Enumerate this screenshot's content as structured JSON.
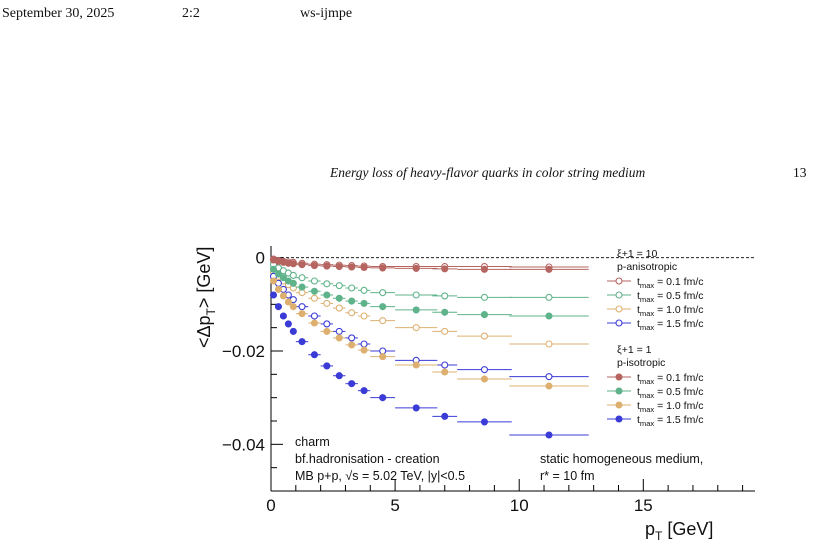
{
  "page_header": {
    "date": "September 30, 2025",
    "time": "2:2",
    "journal": "ws-ijmpe"
  },
  "running_head": {
    "title": "Energy loss of heavy-flavor quarks in color string medium",
    "page_number": "13"
  },
  "colors": {
    "t01": "#b5645f",
    "t05": "#5fb38a",
    "t10": "#ddb070",
    "t15": "#3b3bd6"
  },
  "chart_data": {
    "type": "scatter",
    "xlabel": "p_T [GeV]",
    "ylabel": "<Δp_T> [GeV]",
    "xlim": [
      0,
      19.5
    ],
    "ylim": [
      -0.05,
      0.0025
    ],
    "x_ticks": [
      0,
      5,
      10,
      15
    ],
    "y_ticks": [
      0,
      -0.02,
      -0.04
    ],
    "x_tick_labels": [
      "0",
      "5",
      "10",
      "15"
    ],
    "y_tick_labels": [
      "0",
      "−0.02",
      "−0.04"
    ],
    "reference_line_y": 0,
    "annotations": {
      "left": [
        "charm",
        "bf.hadronisation - creation",
        "MB p+p, √s = 5.02 TeV, |y|<0.5"
      ],
      "right": [
        "static homogeneous medium,",
        "r* = 10 fm"
      ]
    },
    "legend": {
      "groups": [
        {
          "title_line1": "ξ+1 = 10",
          "title_line2": "p-anisotropic",
          "marker": "open",
          "entries": [
            {
              "label": "t_max = 0.1 fm/c",
              "color": "#b5645f"
            },
            {
              "label": "t_max = 0.5 fm/c",
              "color": "#5fb38a"
            },
            {
              "label": "t_max = 1.0 fm/c",
              "color": "#ddb070"
            },
            {
              "label": "t_max = 1.5 fm/c",
              "color": "#3b3bd6"
            }
          ]
        },
        {
          "title_line1": "ξ+1 = 1",
          "title_line2": "p-isotropic",
          "marker": "filled",
          "entries": [
            {
              "label": "t_max = 0.1 fm/c",
              "color": "#b5645f"
            },
            {
              "label": "t_max = 0.5 fm/c",
              "color": "#5fb38a"
            },
            {
              "label": "t_max = 1.0 fm/c",
              "color": "#ddb070"
            },
            {
              "label": "t_max = 1.5 fm/c",
              "color": "#3b3bd6"
            }
          ]
        }
      ]
    },
    "x": [
      0.1,
      0.3,
      0.5,
      0.7,
      0.9,
      1.25,
      1.75,
      2.25,
      2.75,
      3.25,
      3.75,
      4.5,
      5.85,
      7.0,
      8.6,
      11.2
    ],
    "x_err": [
      0.1,
      0.1,
      0.1,
      0.1,
      0.1,
      0.25,
      0.25,
      0.25,
      0.25,
      0.25,
      0.25,
      0.5,
      0.85,
      0.5,
      1.1,
      1.6
    ],
    "series": [
      {
        "name": "ξ+1 = 10, t_max = 0.1 fm/c",
        "marker": "open",
        "color": "#b5645f",
        "x_override": [
          0.1,
          0.3,
          0.5,
          0.7,
          0.9,
          1.25,
          1.75,
          2.25,
          2.75,
          3.25,
          3.75,
          4.5,
          5.85,
          7.0,
          8.6,
          11.2
        ],
        "y": [
          -0.0003,
          -0.0006,
          -0.0008,
          -0.0009,
          -0.001,
          -0.0012,
          -0.0014,
          -0.0015,
          -0.0016,
          -0.0017,
          -0.0018,
          -0.0019,
          -0.0019,
          -0.0019,
          -0.0019,
          -0.002
        ]
      },
      {
        "name": "ξ+1 = 10, t_max = 0.5 fm/c",
        "marker": "open",
        "color": "#5fb38a",
        "y": [
          -0.0015,
          -0.0022,
          -0.0028,
          -0.0033,
          -0.0038,
          -0.0043,
          -0.005,
          -0.0056,
          -0.006,
          -0.0065,
          -0.007,
          -0.0075,
          -0.008,
          -0.0082,
          -0.0085,
          -0.0085
        ]
      },
      {
        "name": "ξ+1 = 10, t_max = 1.0 fm/c",
        "marker": "open",
        "color": "#ddb070",
        "y": [
          -0.003,
          -0.004,
          -0.005,
          -0.0058,
          -0.0065,
          -0.0075,
          -0.0087,
          -0.0098,
          -0.0108,
          -0.0118,
          -0.0125,
          -0.0135,
          -0.015,
          -0.0158,
          -0.0168,
          -0.0185
        ]
      },
      {
        "name": "ξ+1 = 10, t_max = 1.5 fm/c",
        "marker": "open",
        "color": "#3b3bd6",
        "y": [
          -0.004,
          -0.0055,
          -0.0068,
          -0.008,
          -0.009,
          -0.0105,
          -0.0125,
          -0.0142,
          -0.0158,
          -0.0172,
          -0.0185,
          -0.02,
          -0.022,
          -0.023,
          -0.024,
          -0.0255
        ]
      },
      {
        "name": "ξ+1 = 1, t_max = 0.1 fm/c",
        "marker": "filled",
        "color": "#b5645f",
        "y": [
          -0.0005,
          -0.0008,
          -0.001,
          -0.0012,
          -0.0013,
          -0.0015,
          -0.0017,
          -0.0018,
          -0.0019,
          -0.002,
          -0.0021,
          -0.0022,
          -0.0023,
          -0.0024,
          -0.0025,
          -0.0025
        ]
      },
      {
        "name": "ξ+1 = 1, t_max = 0.5 fm/c",
        "marker": "filled",
        "color": "#5fb38a",
        "y": [
          -0.0025,
          -0.0035,
          -0.0043,
          -0.005,
          -0.0055,
          -0.0063,
          -0.0072,
          -0.008,
          -0.0087,
          -0.0093,
          -0.0098,
          -0.0105,
          -0.0112,
          -0.0117,
          -0.0122,
          -0.0125
        ]
      },
      {
        "name": "ξ+1 = 1, t_max = 1.0 fm/c",
        "marker": "filled",
        "color": "#ddb070",
        "y": [
          -0.005,
          -0.0068,
          -0.0082,
          -0.0095,
          -0.0105,
          -0.012,
          -0.014,
          -0.0158,
          -0.0172,
          -0.0187,
          -0.0198,
          -0.0212,
          -0.023,
          -0.0245,
          -0.026,
          -0.0275
        ]
      },
      {
        "name": "ξ+1 = 1, t_max = 1.5 fm/c",
        "marker": "filled",
        "color": "#3b3bd6",
        "y": [
          -0.008,
          -0.0105,
          -0.0125,
          -0.0142,
          -0.0158,
          -0.018,
          -0.0208,
          -0.0232,
          -0.0253,
          -0.027,
          -0.0285,
          -0.03,
          -0.0322,
          -0.034,
          -0.0352,
          -0.038
        ]
      }
    ]
  }
}
